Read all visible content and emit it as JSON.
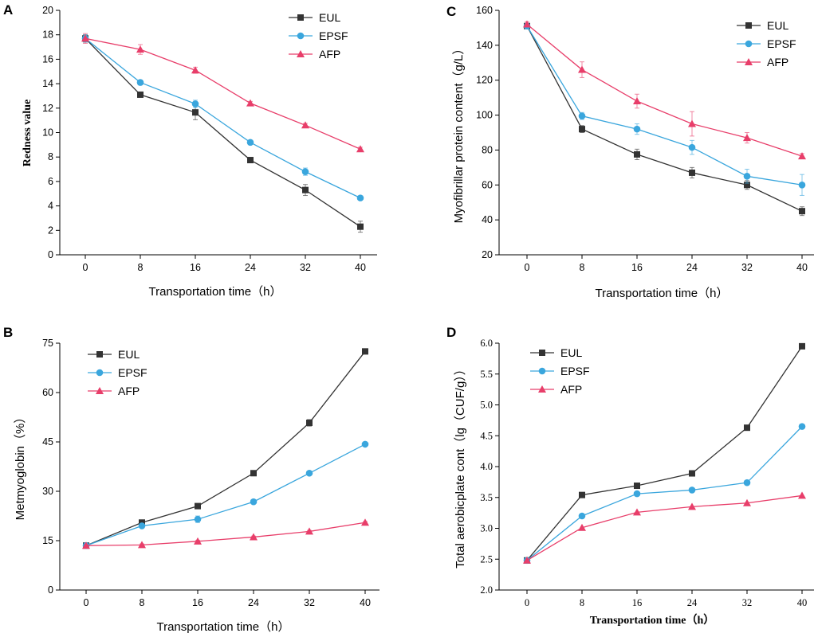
{
  "colors": {
    "EUL": "#333333",
    "EPSF": "#3aa6dd",
    "AFP": "#e83e6a"
  },
  "chart_data": [
    {
      "panel": "A",
      "type": "line",
      "title": "",
      "xlabel": "Transportation time（h）",
      "ylabel": "Redness value",
      "categories": [
        0,
        8,
        16,
        24,
        32,
        40
      ],
      "xticks": [
        "0",
        "8",
        "16",
        "24",
        "32",
        "40"
      ],
      "yticks": [
        "0",
        "2",
        "4",
        "6",
        "8",
        "10",
        "12",
        "14",
        "16",
        "18",
        "20"
      ],
      "ylim": [
        0,
        20
      ],
      "legend": "top-right",
      "series": [
        {
          "name": "EUL",
          "marker": "square",
          "values": [
            17.7,
            13.1,
            11.65,
            7.75,
            5.3,
            2.3
          ],
          "errors": [
            0.3,
            0.2,
            0.6,
            0.2,
            0.45,
            0.45
          ]
        },
        {
          "name": "EPSF",
          "marker": "circle",
          "values": [
            17.7,
            14.1,
            12.35,
            9.2,
            6.8,
            4.65
          ],
          "errors": [
            0.3,
            0.2,
            0.3,
            0.15,
            0.3,
            0.15
          ]
        },
        {
          "name": "AFP",
          "marker": "triangle",
          "values": [
            17.7,
            16.8,
            15.1,
            12.4,
            10.6,
            8.65
          ],
          "errors": [
            0.4,
            0.4,
            0.25,
            0.15,
            0.15,
            0.15
          ]
        }
      ]
    },
    {
      "panel": "C",
      "type": "line",
      "title": "",
      "xlabel": "Transportation time（h）",
      "ylabel": "Myofibrillar protein content（g/L）",
      "categories": [
        0,
        8,
        16,
        24,
        32,
        40
      ],
      "xticks": [
        "0",
        "8",
        "16",
        "24",
        "32",
        "40"
      ],
      "yticks": [
        "20",
        "40",
        "60",
        "80",
        "100",
        "120",
        "140",
        "160"
      ],
      "ylim": [
        20,
        160
      ],
      "legend": "top-right",
      "series": [
        {
          "name": "EUL",
          "marker": "square",
          "values": [
            151,
            92,
            77.5,
            67,
            60,
            45
          ],
          "errors": [
            1.5,
            2,
            3,
            3,
            2.5,
            2.5
          ]
        },
        {
          "name": "EPSF",
          "marker": "circle",
          "values": [
            151,
            99.5,
            92,
            81.5,
            65,
            60
          ],
          "errors": [
            1.5,
            2,
            3,
            4,
            4,
            6
          ]
        },
        {
          "name": "AFP",
          "marker": "triangle",
          "values": [
            152,
            126,
            108,
            95,
            87,
            76.5
          ],
          "errors": [
            1.5,
            4.5,
            4,
            7,
            3,
            1.5
          ]
        }
      ]
    },
    {
      "panel": "B",
      "type": "line",
      "title": "",
      "xlabel": "Transportation time（h）",
      "ylabel": "Metmyoglobin（%）",
      "categories": [
        0,
        8,
        16,
        24,
        32,
        40
      ],
      "xticks": [
        "0",
        "8",
        "16",
        "24",
        "32",
        "40"
      ],
      "yticks": [
        "0",
        "15",
        "30",
        "45",
        "60",
        "75"
      ],
      "ylim": [
        0,
        75
      ],
      "legend": "top-left",
      "series": [
        {
          "name": "EUL",
          "marker": "square",
          "values": [
            13.5,
            20.5,
            25.5,
            35.5,
            50.8,
            72.5
          ],
          "errors": [
            0.3,
            0.3,
            0.3,
            0.3,
            1,
            0.3
          ]
        },
        {
          "name": "EPSF",
          "marker": "circle",
          "values": [
            13.5,
            19.5,
            21.5,
            26.8,
            35.5,
            44.3
          ],
          "errors": [
            0.3,
            0.3,
            1,
            0.5,
            0.3,
            0.3
          ]
        },
        {
          "name": "AFP",
          "marker": "triangle",
          "values": [
            13.5,
            13.7,
            14.8,
            16.1,
            17.8,
            20.5
          ],
          "errors": [
            0.3,
            0.3,
            0.3,
            0.3,
            0.3,
            0.3
          ]
        }
      ]
    },
    {
      "panel": "D",
      "type": "line",
      "title": "",
      "xlabel": "Transportation time（h）",
      "ylabel": "Total aerobicplate cont（lg（CUF/g））",
      "categories": [
        0,
        8,
        16,
        24,
        32,
        40
      ],
      "xticks": [
        "0",
        "8",
        "16",
        "24",
        "32",
        "40"
      ],
      "yticks": [
        "2.0",
        "2.5",
        "3.0",
        "3.5",
        "4.0",
        "4.5",
        "5.0",
        "5.5",
        "6.0"
      ],
      "ylim": [
        2.0,
        6.0
      ],
      "legend": "top-left",
      "series": [
        {
          "name": "EUL",
          "marker": "square",
          "values": [
            2.48,
            3.54,
            3.69,
            3.89,
            4.63,
            5.95
          ],
          "errors": [
            0,
            0,
            0,
            0,
            0,
            0
          ]
        },
        {
          "name": "EPSF",
          "marker": "circle",
          "values": [
            2.48,
            3.2,
            3.56,
            3.62,
            3.74,
            4.65
          ],
          "errors": [
            0,
            0,
            0,
            0,
            0,
            0
          ]
        },
        {
          "name": "AFP",
          "marker": "triangle",
          "values": [
            2.48,
            3.01,
            3.26,
            3.35,
            3.41,
            3.53
          ],
          "errors": [
            0,
            0,
            0,
            0,
            0,
            0
          ]
        }
      ]
    }
  ]
}
